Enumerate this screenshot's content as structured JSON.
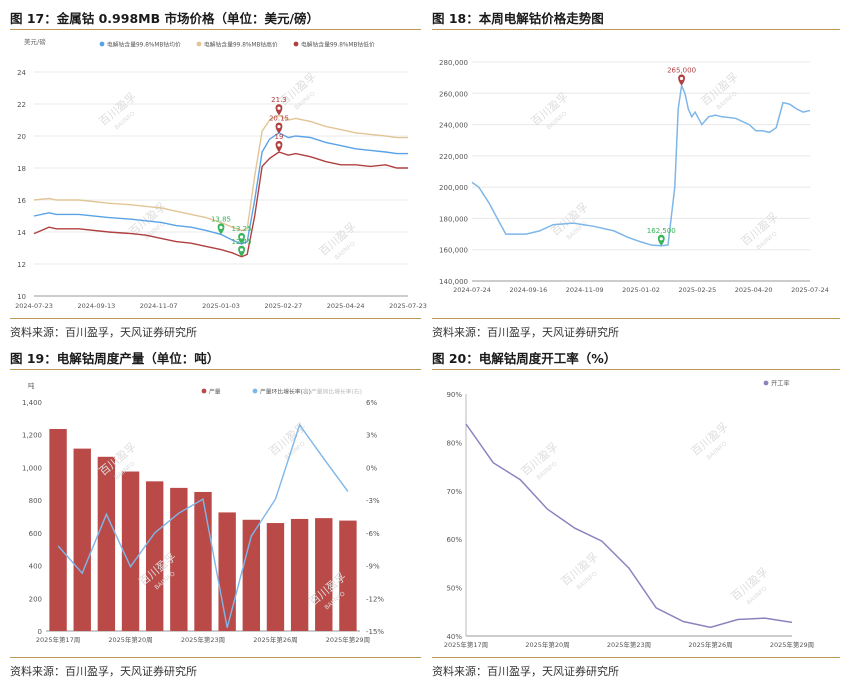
{
  "panels": [
    {
      "title": "图 17：金属钴 0.998MB 市场价格（单位：美元/磅）",
      "source": "资料来源：百川盈孚，天风证券研究所"
    },
    {
      "title": "图 18：本周电解钴价格走势图",
      "source": "资料来源：百川盈孚，天风证券研究所"
    },
    {
      "title": "图 19：电解钴周度产量（单位：吨）",
      "source": "资料来源：百川盈孚，天风证券研究所"
    },
    {
      "title": "图 20：电解钴周度开工率（%）",
      "source": "资料来源：百川盈孚，天风证券研究所"
    }
  ],
  "colors": {
    "blue": "#5aa2e6",
    "tan": "#e2c596",
    "darkred": "#b04040",
    "lightblue": "#7fb6e8",
    "bar": "#b94a48",
    "purple": "#8a84be",
    "green": "#39b45a",
    "grid": "#e8e8e8"
  },
  "chart_data": [
    {
      "type": "line",
      "ylabel": "美元/磅",
      "ylim": [
        10,
        24
      ],
      "yticks": [
        "10",
        "12",
        "14",
        "16",
        "18",
        "20",
        "22",
        "24"
      ],
      "xticks": [
        "2024-07-23",
        "2024-09-13",
        "2024-11-07",
        "2025-01-03",
        "2025-02-27",
        "2025-04-24",
        "2025-07-23"
      ],
      "legend": [
        "电解钴含量99.8%MB钴均价",
        "电解钴含量99.8%MB钴高价",
        "电解钴含量99.8%MB钴低价"
      ],
      "series": [
        {
          "name": "电解钴含量99.8%MB钴均价",
          "x": [
            0,
            0.04,
            0.06,
            0.12,
            0.2,
            0.26,
            0.3,
            0.34,
            0.38,
            0.42,
            0.46,
            0.5,
            0.53,
            0.555,
            0.57,
            0.59,
            0.61,
            0.63,
            0.655,
            0.68,
            0.7,
            0.74,
            0.78,
            0.82,
            0.86,
            0.9,
            0.94,
            0.97,
            1.0
          ],
          "y": [
            15,
            15.2,
            15.1,
            15.1,
            14.9,
            14.8,
            14.7,
            14.6,
            14.4,
            14.3,
            14.1,
            13.85,
            13.5,
            13.25,
            13.4,
            16,
            19,
            19.8,
            20.2,
            19.9,
            20,
            19.9,
            19.6,
            19.4,
            19.2,
            19.1,
            19,
            18.9,
            18.9
          ]
        },
        {
          "name": "电解钴含量99.8%MB钴高价",
          "x": [
            0,
            0.04,
            0.06,
            0.12,
            0.2,
            0.26,
            0.3,
            0.34,
            0.38,
            0.42,
            0.46,
            0.5,
            0.53,
            0.555,
            0.57,
            0.59,
            0.61,
            0.63,
            0.655,
            0.68,
            0.7,
            0.74,
            0.78,
            0.82,
            0.86,
            0.9,
            0.94,
            0.97,
            1.0
          ],
          "y": [
            16,
            16.1,
            16,
            16,
            15.8,
            15.7,
            15.6,
            15.5,
            15.3,
            15.1,
            14.9,
            14.6,
            14.3,
            14.1,
            14.2,
            17.5,
            20.3,
            21,
            21.3,
            21,
            21.1,
            20.9,
            20.6,
            20.4,
            20.2,
            20.1,
            20,
            19.9,
            19.9
          ]
        },
        {
          "name": "电解钴含量99.8%MB钴低价",
          "x": [
            0,
            0.04,
            0.06,
            0.12,
            0.2,
            0.26,
            0.3,
            0.34,
            0.38,
            0.42,
            0.46,
            0.5,
            0.53,
            0.555,
            0.57,
            0.59,
            0.61,
            0.63,
            0.655,
            0.68,
            0.7,
            0.74,
            0.78,
            0.82,
            0.86,
            0.9,
            0.94,
            0.97,
            1.0
          ],
          "y": [
            13.9,
            14.3,
            14.2,
            14.2,
            14,
            13.9,
            13.8,
            13.6,
            13.4,
            13.3,
            13.1,
            12.9,
            12.7,
            12.45,
            12.6,
            15,
            18.1,
            18.6,
            19,
            18.8,
            18.9,
            18.7,
            18.4,
            18.2,
            18.2,
            18.1,
            18.2,
            18,
            18
          ]
        }
      ],
      "annotations": [
        {
          "text": "21.3",
          "x": 0.655,
          "y": 21.3,
          "color": "#b04040"
        },
        {
          "text": "20.15",
          "x": 0.655,
          "y": 20.15,
          "color": "#b04040"
        },
        {
          "text": "19",
          "x": 0.655,
          "y": 19,
          "color": "#b04040"
        },
        {
          "text": "13.85",
          "x": 0.5,
          "y": 13.85,
          "color": "#39b45a"
        },
        {
          "text": "13.25",
          "x": 0.555,
          "y": 13.25,
          "color": "#39b45a"
        },
        {
          "text": "12.45",
          "x": 0.555,
          "y": 12.45,
          "color": "#39b45a"
        }
      ]
    },
    {
      "type": "line",
      "ylim": [
        140000,
        280000
      ],
      "yticks": [
        "140,000",
        "160,000",
        "180,000",
        "200,000",
        "220,000",
        "240,000",
        "260,000",
        "280,000"
      ],
      "xticks": [
        "2024-07-24",
        "2024-09-16",
        "2024-11-09",
        "2025-01-02",
        "2025-02-25",
        "2025-04-20",
        "2025-07-24"
      ],
      "series": [
        {
          "name": "",
          "x": [
            0,
            0.02,
            0.05,
            0.08,
            0.1,
            0.16,
            0.2,
            0.24,
            0.3,
            0.36,
            0.42,
            0.46,
            0.5,
            0.53,
            0.56,
            0.58,
            0.6,
            0.61,
            0.62,
            0.63,
            0.64,
            0.65,
            0.66,
            0.67,
            0.68,
            0.7,
            0.72,
            0.74,
            0.78,
            0.82,
            0.84,
            0.86,
            0.88,
            0.9,
            0.92,
            0.94,
            0.96,
            0.98,
            1.0
          ],
          "y": [
            203000,
            200000,
            190000,
            178000,
            170000,
            170000,
            172000,
            176000,
            177000,
            175000,
            172000,
            168000,
            165000,
            163000,
            162500,
            163000,
            200000,
            250000,
            265000,
            260000,
            250000,
            245000,
            248000,
            244000,
            240000,
            245000,
            246000,
            245000,
            244000,
            240000,
            236000,
            236000,
            235000,
            238000,
            254000,
            253000,
            250000,
            248000,
            249000
          ]
        }
      ],
      "annotations": [
        {
          "text": "265,000",
          "x": 0.62,
          "y": 265000,
          "color": "#b04040"
        },
        {
          "text": "162,500",
          "x": 0.56,
          "y": 162500,
          "color": "#39b45a"
        }
      ]
    },
    {
      "type": "bar",
      "ylabel": "吨",
      "ylim": [
        0,
        1400
      ],
      "yticks": [
        "0",
        "200",
        "400",
        "600",
        "800",
        "1,000",
        "1,200",
        "1,400"
      ],
      "y2ticks": [
        "-15%",
        "-12%",
        "-9%",
        "-6%",
        "-3%",
        "0%",
        "3%",
        "6%"
      ],
      "y2lim": [
        -15,
        6
      ],
      "categories": [
        "2025年第17周",
        "2025年第18周",
        "2025年第19周",
        "2025年第20周",
        "2025年第21周",
        "2025年第22周",
        "2025年第23周",
        "2025年第24周",
        "2025年第25周",
        "2025年第26周",
        "2025年第27周",
        "2025年第28周",
        "2025年第29周"
      ],
      "xticks": [
        "2025年第17周",
        "2025年第20周",
        "2025年第23周",
        "2025年第26周",
        "2025年第29周"
      ],
      "legend": [
        "产量",
        "产量环比增长率(右)",
        "产量同比增长率(右)"
      ],
      "series": [
        {
          "name": "产量",
          "values": [
            1235,
            1115,
            1065,
            975,
            915,
            875,
            850,
            725,
            680,
            660,
            685,
            690,
            675
          ]
        },
        {
          "name": "产量环比增长率(右)",
          "values": [
            -7.2,
            -9.7,
            -4.3,
            -9.1,
            -6.0,
            -4.2,
            -2.9,
            -14.7,
            -6.3,
            -2.9,
            3.9,
            0.8,
            -2.2
          ]
        }
      ]
    },
    {
      "type": "line",
      "ylim": [
        40,
        90
      ],
      "yticks": [
        "40%",
        "50%",
        "60%",
        "70%",
        "80%",
        "90%"
      ],
      "xticks": [
        "2025年第17周",
        "2025年第20周",
        "2025年第23周",
        "2025年第26周",
        "2025年第29周"
      ],
      "legend": [
        "开工率"
      ],
      "series": [
        {
          "name": "开工率",
          "values": [
            83.8,
            75.8,
            72.3,
            66.2,
            62.3,
            59.6,
            54.0,
            45.8,
            43.0,
            41.8,
            43.4,
            43.7,
            42.8
          ]
        }
      ]
    }
  ],
  "watermark": [
    "百川盈孚",
    "BAIINFO"
  ]
}
